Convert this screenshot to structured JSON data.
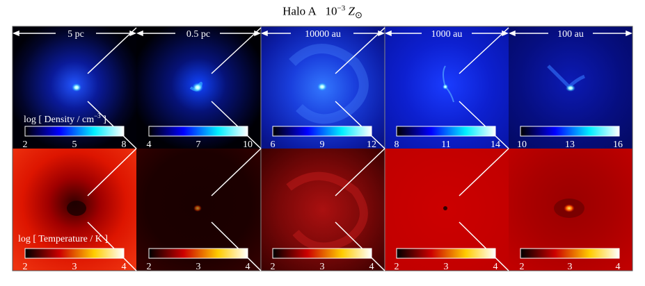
{
  "title": {
    "prefix": "Halo A",
    "metallicity_base": "10",
    "metallicity_exp": "−3",
    "metallicity_symbol": "Z",
    "metallicity_sun": "⊙"
  },
  "scale_labels": [
    "5 pc",
    "0.5 pc",
    "10000 au",
    "1000 au",
    "100 au"
  ],
  "density_row": {
    "label": "log [ Density / cm",
    "label_exp": "−3",
    "label_end": " ]",
    "colorbars": [
      {
        "min": "2",
        "mid": "5",
        "max": "8"
      },
      {
        "min": "4",
        "mid": "7",
        "max": "10"
      },
      {
        "min": "6",
        "mid": "9",
        "max": "12"
      },
      {
        "min": "8",
        "mid": "11",
        "max": "14"
      },
      {
        "min": "10",
        "mid": "13",
        "max": "16"
      }
    ]
  },
  "temperature_row": {
    "label": "log [ Temperature / K ]",
    "colorbars": [
      {
        "min": "2",
        "mid": "3",
        "max": "4"
      },
      {
        "min": "2",
        "mid": "3",
        "max": "4"
      },
      {
        "min": "2",
        "mid": "3",
        "max": "4"
      },
      {
        "min": "2",
        "mid": "3",
        "max": "4"
      },
      {
        "min": "2",
        "mid": "3",
        "max": "4"
      }
    ]
  },
  "colors": {
    "density_bg": "#000033",
    "density_core": "#aaffff",
    "temperature_bg": "#cc0000",
    "temperature_hot": "#ffee66"
  }
}
